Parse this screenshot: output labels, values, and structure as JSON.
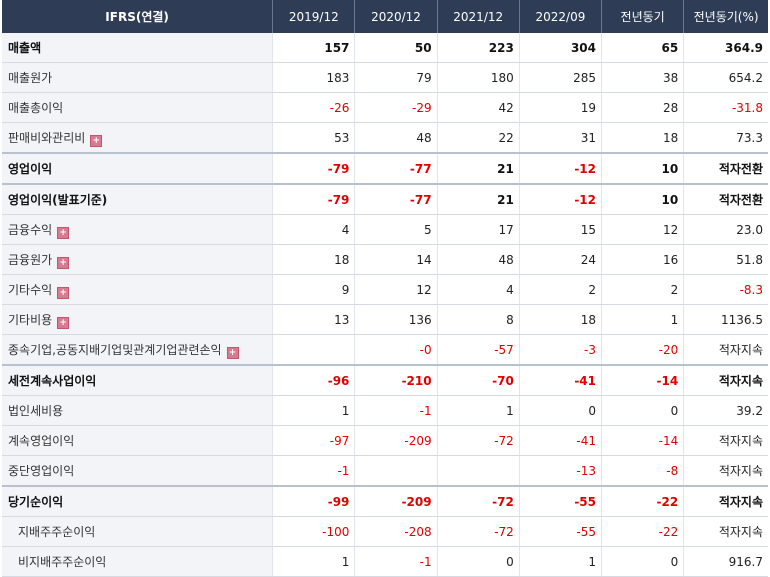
{
  "header": {
    "label": "IFRS(연결)",
    "columns": [
      "2019/12",
      "2020/12",
      "2021/12",
      "2022/09",
      "전년동기",
      "전년동기(%)"
    ]
  },
  "rows": [
    {
      "label": "매출액",
      "bold": true,
      "values": [
        "157",
        "50",
        "223",
        "304",
        "65",
        "364.9"
      ]
    },
    {
      "label": "매출원가",
      "values": [
        "183",
        "79",
        "180",
        "285",
        "38",
        "654.2"
      ]
    },
    {
      "label": "매출총이익",
      "values": [
        "-26",
        "-29",
        "42",
        "19",
        "28",
        "-31.8"
      ]
    },
    {
      "label": "판매비와관리비",
      "expand": true,
      "values": [
        "53",
        "48",
        "22",
        "31",
        "18",
        "73.3"
      ]
    },
    {
      "label": "영업이익",
      "bold": true,
      "sep": true,
      "values": [
        "-79",
        "-77",
        "21",
        "-12",
        "10",
        "적자전환"
      ]
    },
    {
      "label": "영업이익(발표기준)",
      "bold": true,
      "sep": true,
      "values": [
        "-79",
        "-77",
        "21",
        "-12",
        "10",
        "적자전환"
      ]
    },
    {
      "label": "금융수익",
      "expand": true,
      "values": [
        "4",
        "5",
        "17",
        "15",
        "12",
        "23.0"
      ]
    },
    {
      "label": "금융원가",
      "expand": true,
      "values": [
        "18",
        "14",
        "48",
        "24",
        "16",
        "51.8"
      ]
    },
    {
      "label": "기타수익",
      "expand": true,
      "values": [
        "9",
        "12",
        "4",
        "2",
        "2",
        "-8.3"
      ]
    },
    {
      "label": "기타비용",
      "expand": true,
      "values": [
        "13",
        "136",
        "8",
        "18",
        "1",
        "1136.5"
      ]
    },
    {
      "label": "종속기업,공동지배기업및관계기업관련손익",
      "expand": true,
      "values": [
        "",
        "-0",
        "-57",
        "-3",
        "-20",
        "적자지속"
      ]
    },
    {
      "label": "세전계속사업이익",
      "bold": true,
      "sep": true,
      "values": [
        "-96",
        "-210",
        "-70",
        "-41",
        "-14",
        "적자지속"
      ]
    },
    {
      "label": "법인세비용",
      "values": [
        "1",
        "-1",
        "1",
        "0",
        "0",
        "39.2"
      ]
    },
    {
      "label": "계속영업이익",
      "values": [
        "-97",
        "-209",
        "-72",
        "-41",
        "-14",
        "적자지속"
      ]
    },
    {
      "label": "중단영업이익",
      "values": [
        "-1",
        "",
        "",
        "-13",
        "-8",
        "적자지속"
      ]
    },
    {
      "label": "당기순이익",
      "bold": true,
      "sep": true,
      "values": [
        "-99",
        "-209",
        "-72",
        "-55",
        "-22",
        "적자지속"
      ]
    },
    {
      "label": "지배주주순이익",
      "indent": true,
      "values": [
        "-100",
        "-208",
        "-72",
        "-55",
        "-22",
        "적자지속"
      ]
    },
    {
      "label": "비지배주주순이익",
      "indent": true,
      "values": [
        "1",
        "-1",
        "0",
        "1",
        "0",
        "916.7"
      ]
    }
  ],
  "icons": {
    "expand": "plus-box-icon"
  },
  "colors": {
    "header_bg": "#2e3c55",
    "negative": "#e00000",
    "label_bg": "#f2f4f8",
    "expand_icon": "#d97a91"
  }
}
